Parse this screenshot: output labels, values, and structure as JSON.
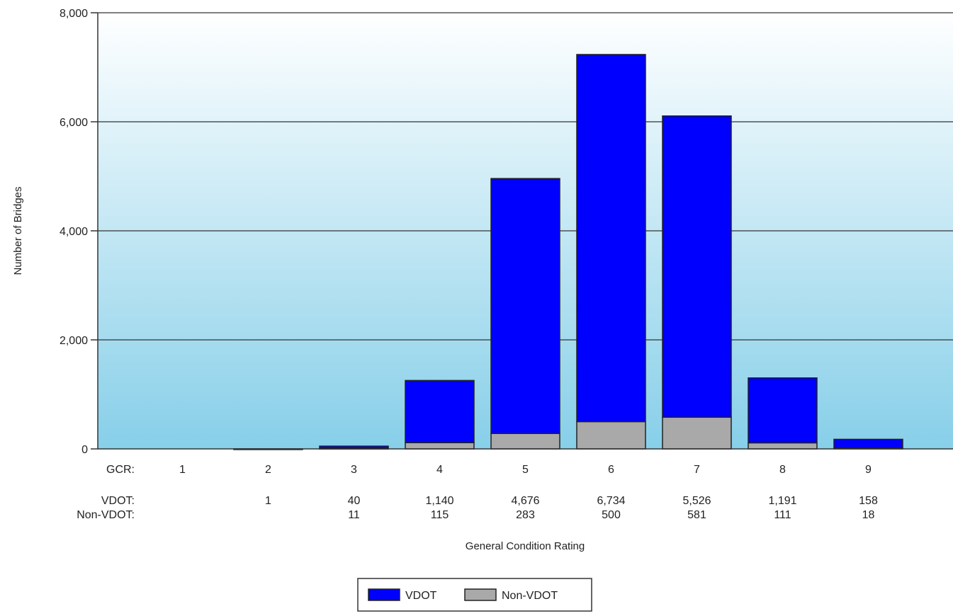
{
  "chart_data": {
    "type": "bar",
    "stacked": true,
    "title": "",
    "xlabel": "General Condition Rating",
    "ylabel": "Number of Bridges",
    "ylim": [
      0,
      8000
    ],
    "y_ticks": [
      "0",
      "2,000",
      "4,000",
      "6,000",
      "8,000"
    ],
    "y_tick_values": [
      0,
      2000,
      4000,
      6000,
      8000
    ],
    "grid": true,
    "categories": [
      "1",
      "2",
      "3",
      "4",
      "5",
      "6",
      "7",
      "8",
      "9"
    ],
    "series": [
      {
        "name": "Non-VDOT",
        "color": "#a9a9a9",
        "values": [
          0,
          0,
          11,
          115,
          283,
          500,
          581,
          111,
          18
        ]
      },
      {
        "name": "VDOT",
        "color": "#0000ff",
        "values": [
          0,
          1,
          40,
          1140,
          4676,
          6734,
          5526,
          1191,
          158
        ]
      }
    ],
    "table": {
      "gcr_label": "GCR:",
      "vdot_label": "VDOT:",
      "nonvdot_label": "Non-VDOT:",
      "vdot_values": [
        "",
        "1",
        "40",
        "1,140",
        "4,676",
        "6,734",
        "5,526",
        "1,191",
        "158"
      ],
      "nonvdot_values": [
        "",
        "",
        "11",
        "115",
        "283",
        "500",
        "581",
        "111",
        "18"
      ]
    },
    "legend": {
      "placement": "bottom-center",
      "items": [
        "VDOT",
        "Non-VDOT"
      ]
    },
    "background_gradient": [
      "#ffffff",
      "#87cfe9"
    ]
  }
}
